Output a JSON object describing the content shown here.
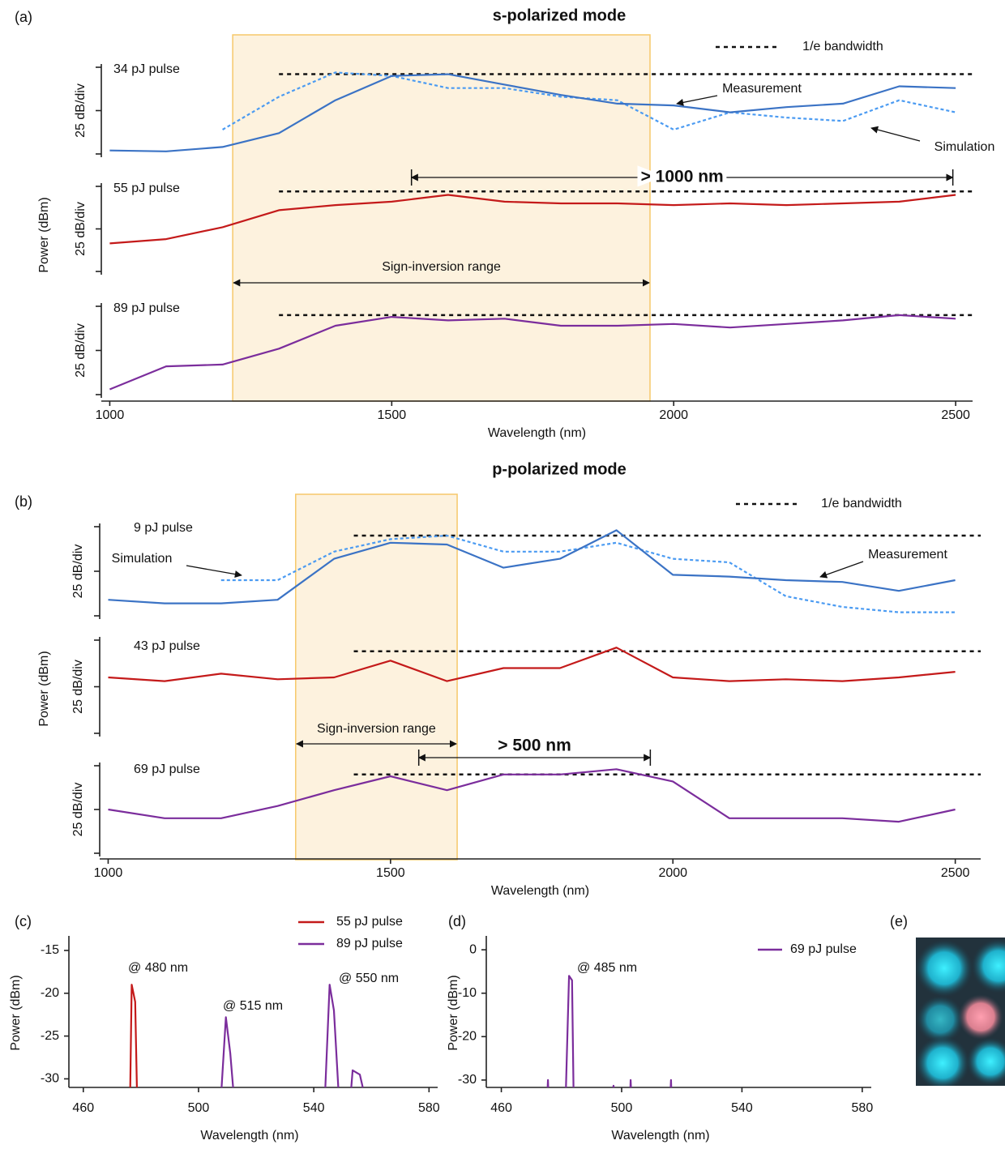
{
  "chart_data": [
    {
      "type": "line",
      "panel_label": "(a)",
      "title": "s-polarized mode",
      "x_label": "Wavelength (nm)",
      "y_label": "Power (dBm)",
      "xlim": [
        985,
        2530
      ],
      "xticks": [
        1000,
        1500,
        2000,
        2500
      ],
      "x": [
        1000,
        1100,
        1200,
        1300,
        1400,
        1500,
        1600,
        1700,
        1800,
        1900,
        2000,
        2100,
        2200,
        2300,
        2400,
        2500
      ],
      "bandwidth_legend": "1/e bandwidth",
      "bandwidth_xlim": [
        1300,
        2530
      ],
      "shaded_range": [
        1218,
        1958
      ],
      "shaded_label": "Sign-inversion range",
      "shaded_color": "#fdf2de",
      "span": {
        "label": "> 1000 nm",
        "range": [
          1535,
          2495
        ]
      },
      "subplots": [
        {
          "label": "34 pJ pulse",
          "y_label": "25 dB/div",
          "ylim": [
            0,
            50
          ],
          "yticks": [
            0,
            25,
            50
          ],
          "bandwidth": 46,
          "series": [
            {
              "name": "Measurement",
              "color": "#3b73c5",
              "style": "solid",
              "values": [
                2,
                1.5,
                4,
                12,
                31,
                45,
                46,
                40,
                34,
                29,
                28,
                24,
                27,
                29,
                39,
                38
              ]
            },
            {
              "name": "Simulation",
              "color": "#4b9bf2",
              "style": "dashed",
              "values": [
                null,
                null,
                14,
                33,
                47,
                45,
                38,
                38,
                33,
                31,
                14,
                24,
                21,
                19,
                31,
                24
              ]
            }
          ]
        },
        {
          "label": "55 pJ pulse",
          "y_label": "25 dB/div",
          "ylim": [
            0,
            50
          ],
          "yticks": [
            0,
            25,
            50
          ],
          "bandwidth": 47,
          "series": [
            {
              "color": "#c41a1a",
              "style": "solid",
              "values": [
                16.5,
                19,
                26,
                36,
                39,
                41,
                45,
                41,
                40,
                40,
                39,
                40,
                39,
                40,
                41,
                45
              ]
            }
          ]
        },
        {
          "label": "89 pJ pulse",
          "y_label": "25 dB/div",
          "ylim": [
            0,
            50
          ],
          "yticks": [
            0,
            25,
            50
          ],
          "bandwidth": 45,
          "series": [
            {
              "color": "#7b2d9c",
              "style": "solid",
              "values": [
                3,
                16,
                17,
                26,
                39,
                44,
                42,
                43,
                39,
                39,
                40,
                38,
                40,
                42,
                45,
                43
              ]
            }
          ]
        }
      ]
    },
    {
      "type": "line",
      "panel_label": "(b)",
      "title": "p-polarized mode",
      "x_label": "Wavelength (nm)",
      "y_label": "Power (dBm)",
      "xlim": [
        985,
        2545
      ],
      "xticks": [
        1000,
        1500,
        2000,
        2500
      ],
      "x": [
        1000,
        1100,
        1200,
        1300,
        1400,
        1500,
        1600,
        1700,
        1800,
        1900,
        2000,
        2100,
        2200,
        2300,
        2400,
        2500
      ],
      "bandwidth_legend": "1/e bandwidth",
      "bandwidth_xlim": [
        1435,
        2545
      ],
      "shaded_range": [
        1332,
        1618
      ],
      "shaded_label": "Sign-inversion range",
      "shaded_color": "#fdf2de",
      "span": {
        "label": "> 500 nm",
        "range": [
          1550,
          1960
        ]
      },
      "subplots": [
        {
          "label": "9 pJ pulse",
          "y_label": "25 dB/div",
          "ylim": [
            0,
            50
          ],
          "yticks": [
            0,
            25,
            50
          ],
          "bandwidth": 45,
          "series": [
            {
              "name": "Measurement",
              "color": "#3b73c5",
              "style": "solid",
              "values": [
                9,
                7,
                7,
                9,
                32,
                41,
                40,
                27,
                32,
                48,
                23,
                22,
                20,
                19,
                14,
                20
              ]
            },
            {
              "name": "Simulation",
              "color": "#4b9bf2",
              "style": "dashed",
              "values": [
                null,
                null,
                20,
                20,
                36,
                43,
                45,
                36,
                36,
                41,
                32,
                30,
                11,
                5,
                2,
                2
              ]
            }
          ]
        },
        {
          "label": "43 pJ pulse",
          "y_label": "25 dB/div",
          "ylim": [
            0,
            50
          ],
          "yticks": [
            0,
            25,
            50
          ],
          "bandwidth": 44,
          "series": [
            {
              "color": "#c41a1a",
              "style": "solid",
              "values": [
                30,
                28,
                32,
                29,
                30,
                39,
                28,
                35,
                35,
                46,
                30,
                28,
                29,
                28,
                30,
                33
              ]
            }
          ]
        },
        {
          "label": "69 pJ pulse",
          "y_label": "25 dB/div",
          "ylim": [
            0,
            50
          ],
          "yticks": [
            0,
            25,
            50
          ],
          "bandwidth": 45,
          "series": [
            {
              "color": "#7b2d9c",
              "style": "solid",
              "values": [
                25,
                20,
                20,
                27,
                36,
                44,
                36,
                45,
                45,
                48,
                41,
                20,
                20,
                20,
                18,
                25
              ]
            }
          ]
        }
      ]
    },
    {
      "type": "line",
      "panel_label": "(c)",
      "x_label": "Wavelength (nm)",
      "y_label": "Power (dBm)",
      "xlim": [
        455,
        583
      ],
      "xticks": [
        460,
        500,
        540,
        580
      ],
      "ylim": [
        -31,
        -13.3
      ],
      "yticks": [
        -15,
        -20,
        -25,
        -30
      ],
      "series": [
        {
          "name": "55 pJ pulse",
          "color": "#c41a1a",
          "x": [
            476.3,
            476.8,
            478,
            478.6
          ],
          "values": [
            -31,
            -19,
            -21,
            -31
          ]
        },
        {
          "name": "89 pJ pulse",
          "color": "#7b2d9c",
          "x": [
            508,
            509.5,
            511,
            512,
            530,
            544,
            545.5,
            547,
            548.5,
            550,
            553,
            553.5,
            556,
            557
          ],
          "values": [
            -31,
            -22.8,
            -27,
            -31,
            null,
            -31,
            -19,
            -22,
            -31,
            null,
            -31,
            -29,
            -29.5,
            -31
          ]
        }
      ],
      "annotations": [
        "@ 480 nm",
        "@ 515 nm",
        "@ 550 nm"
      ]
    },
    {
      "type": "line",
      "panel_label": "(d)",
      "x_label": "Wavelength (nm)",
      "y_label": "Power (dBm)",
      "xlim": [
        455,
        583
      ],
      "xticks": [
        460,
        500,
        540,
        580
      ],
      "ylim": [
        -31.7,
        3.2
      ],
      "yticks": [
        0,
        -10,
        -20,
        -30
      ],
      "series": [
        {
          "name": "69 pJ pulse",
          "color": "#7b2d9c",
          "x": [
            475.4,
            475.5,
            475.6,
            478,
            481.5,
            482.5,
            483.5,
            484,
            490,
            497.2,
            497.3,
            497.4,
            500,
            502.9,
            503,
            503.1,
            510,
            516.3,
            516.4,
            516.5
          ],
          "values": [
            -31.7,
            -30,
            -31.7,
            null,
            -31.7,
            -6,
            -7,
            -31.7,
            null,
            -31.7,
            -31.3,
            -31.7,
            null,
            -31.7,
            -30,
            -31.7,
            null,
            -31.7,
            -30,
            -31.7
          ]
        }
      ],
      "annotations": [
        "@ 485 nm"
      ]
    }
  ],
  "image_panel": {
    "label": "(e)"
  }
}
